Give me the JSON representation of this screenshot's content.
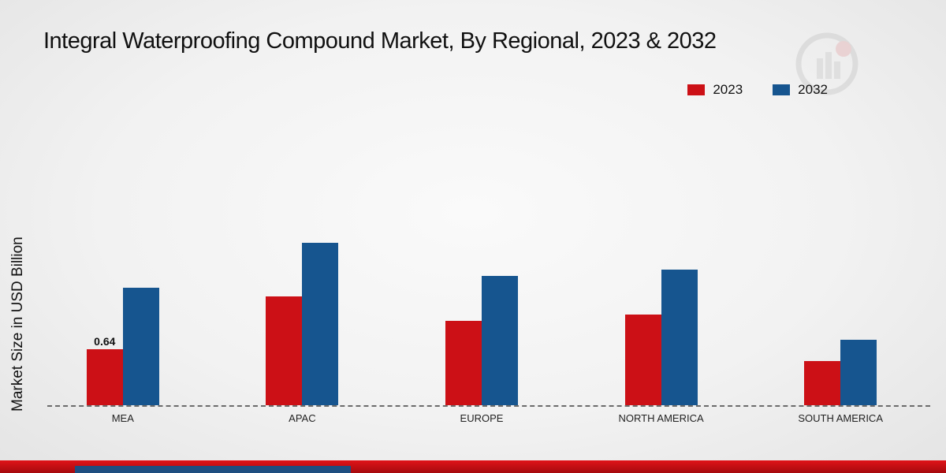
{
  "title": "Integral Waterproofing Compound Market, By Regional, 2023 & 2032",
  "ylabel": "Market Size in USD Billion",
  "legend": [
    {
      "label": "2023",
      "color": "#cc1016"
    },
    {
      "label": "2032",
      "color": "#16558f"
    }
  ],
  "colors": {
    "series_2023": "#cc1016",
    "series_2032": "#16558f",
    "baseline": "#6b6b6b",
    "footer_band": "#c00d12",
    "footer_accent": "#1e4e80"
  },
  "chart_data": {
    "type": "bar",
    "title": "Integral Waterproofing Compound Market, By Regional, 2023 & 2032",
    "xlabel": "",
    "ylabel": "Market Size in USD Billion",
    "categories": [
      "MEA",
      "APAC",
      "EUROPE",
      "NORTH AMERICA",
      "SOUTH AMERICA"
    ],
    "series": [
      {
        "name": "2023",
        "color": "#cc1016",
        "values": [
          0.64,
          1.24,
          0.96,
          1.04,
          0.5
        ]
      },
      {
        "name": "2032",
        "color": "#16558f",
        "values": [
          1.34,
          1.86,
          1.48,
          1.55,
          0.75
        ]
      }
    ],
    "ylim": [
      0,
      2.2
    ],
    "grid": false,
    "legend_position": "top-right",
    "data_labels": [
      {
        "series": "2023",
        "category": "MEA",
        "text": "0.64"
      }
    ]
  }
}
